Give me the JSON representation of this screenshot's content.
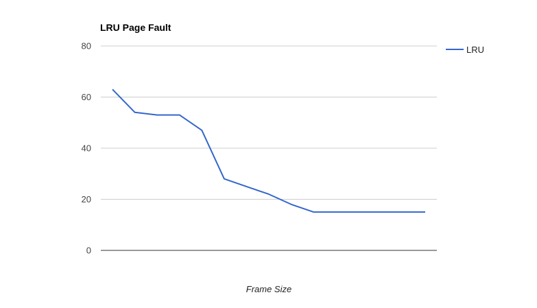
{
  "chart_data": {
    "type": "line",
    "title": "LRU Page Fault",
    "xlabel": "Frame Size",
    "ylabel": "",
    "ylim": [
      0,
      80
    ],
    "yticks": [
      "0",
      "20",
      "40",
      "60",
      "80"
    ],
    "x": [
      1,
      2,
      3,
      4,
      5,
      6,
      7,
      8,
      9,
      10,
      11,
      12,
      13,
      14,
      15
    ],
    "series": [
      {
        "name": "LRU",
        "color": "#3366cc",
        "values": [
          63,
          54,
          53,
          53,
          47,
          28,
          25,
          22,
          18,
          15,
          15,
          15,
          15,
          15,
          15
        ]
      }
    ],
    "grid": true,
    "legend": "right"
  }
}
